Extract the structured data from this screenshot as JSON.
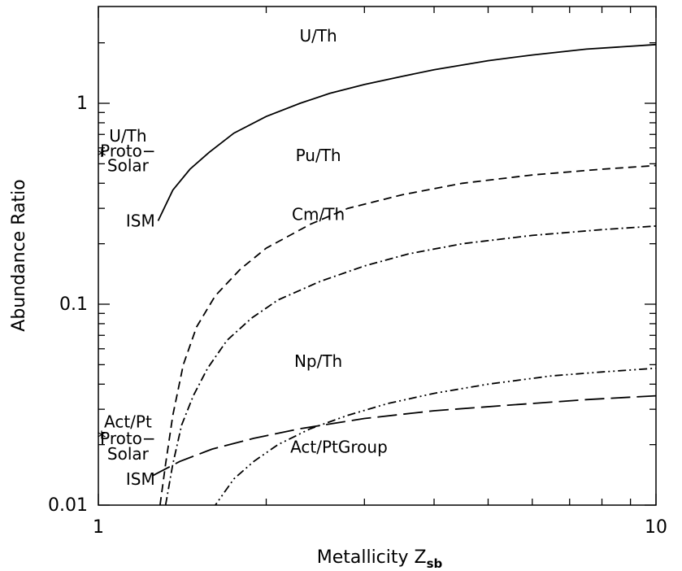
{
  "chart_data": {
    "type": "line",
    "xlabel": "Metallicity Z",
    "xlabel_sub": "sb",
    "ylabel": "Abundance Ratio",
    "xscale": "log",
    "yscale": "log",
    "xlim": [
      1,
      10
    ],
    "ylim": [
      0.01,
      3
    ],
    "x_tick_labels": [
      {
        "value": 1,
        "label": "1"
      },
      {
        "value": 10,
        "label": "10"
      }
    ],
    "y_tick_labels": [
      {
        "value": 0.01,
        "label": "0.01"
      },
      {
        "value": 0.1,
        "label": "0.1"
      },
      {
        "value": 1,
        "label": "1"
      }
    ],
    "grid": false,
    "series": [
      {
        "name": "U/Th",
        "dash": "solid",
        "x": [
          1.28,
          1.36,
          1.46,
          1.58,
          1.75,
          2.0,
          2.3,
          2.6,
          3.0,
          3.5,
          4.0,
          5.0,
          6.0,
          7.5,
          10.0
        ],
        "y": [
          0.26,
          0.37,
          0.47,
          0.57,
          0.71,
          0.86,
          1.0,
          1.12,
          1.24,
          1.36,
          1.47,
          1.63,
          1.74,
          1.86,
          1.96
        ]
      },
      {
        "name": "Pu/Th",
        "dash": "short-dash",
        "x": [
          1.29,
          1.32,
          1.36,
          1.42,
          1.5,
          1.62,
          1.8,
          2.0,
          2.4,
          2.8,
          3.5,
          4.5,
          6.0,
          8.0,
          10.0
        ],
        "y": [
          0.01,
          0.016,
          0.028,
          0.05,
          0.077,
          0.11,
          0.15,
          0.19,
          0.25,
          0.3,
          0.35,
          0.4,
          0.44,
          0.47,
          0.49
        ]
      },
      {
        "name": "Cm/Th",
        "dash": "dash-dot",
        "x": [
          1.32,
          1.36,
          1.41,
          1.48,
          1.57,
          1.7,
          1.88,
          2.1,
          2.5,
          3.0,
          3.6,
          4.5,
          6.0,
          8.0,
          10.0
        ],
        "y": [
          0.01,
          0.016,
          0.025,
          0.035,
          0.048,
          0.066,
          0.085,
          0.105,
          0.13,
          0.155,
          0.178,
          0.2,
          0.22,
          0.235,
          0.245
        ]
      },
      {
        "name": "Np/Th",
        "dash": "dash-dot-dot",
        "x": [
          1.6,
          1.75,
          1.9,
          2.1,
          2.4,
          2.8,
          3.3,
          4.0,
          5.0,
          6.5,
          8.0,
          10.0
        ],
        "y": [
          0.0095,
          0.0135,
          0.0165,
          0.02,
          0.024,
          0.028,
          0.032,
          0.036,
          0.04,
          0.044,
          0.046,
          0.048
        ]
      },
      {
        "name": "Act/PtGroup",
        "dash": "long-dash",
        "x": [
          1.25,
          1.4,
          1.6,
          1.9,
          2.3,
          3.0,
          4.0,
          5.5,
          7.5,
          10.0
        ],
        "y": [
          0.014,
          0.0165,
          0.019,
          0.0215,
          0.024,
          0.027,
          0.0295,
          0.0315,
          0.0335,
          0.035
        ]
      }
    ],
    "annotations": [
      {
        "text": "U/Th",
        "x": 2.48,
        "y": 2.17
      },
      {
        "text": "Pu/Th",
        "x": 2.48,
        "y": 0.55
      },
      {
        "text": "Cm/Th",
        "x": 2.48,
        "y": 0.28
      },
      {
        "text": "Np/Th",
        "x": 2.48,
        "y": 0.052
      },
      {
        "text": "Act/PtGroup",
        "x": 2.7,
        "y": 0.0195
      },
      {
        "text": "ISM",
        "x": 1.19,
        "y": 0.26
      },
      {
        "text": "ISM",
        "x": 1.19,
        "y": 0.0135
      },
      {
        "text": "U/Th",
        "x": 1.13,
        "y": 0.69
      },
      {
        "text": "Proto−",
        "x": 1.13,
        "y": 0.58
      },
      {
        "text": "Solar",
        "x": 1.13,
        "y": 0.49
      },
      {
        "text": "Act/Pt",
        "x": 1.13,
        "y": 0.026
      },
      {
        "text": "Proto−",
        "x": 1.13,
        "y": 0.0215
      },
      {
        "text": "Solar",
        "x": 1.13,
        "y": 0.018
      }
    ],
    "markers": [
      {
        "symbol": "*",
        "x": 1.0,
        "y": 0.57
      },
      {
        "symbol": "*",
        "x": 1.0,
        "y": 0.0225
      }
    ]
  }
}
